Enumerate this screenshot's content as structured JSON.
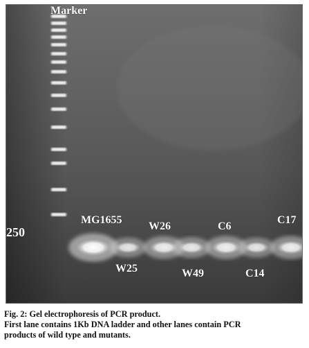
{
  "gel": {
    "marker_label": "Marker",
    "size_label": "250",
    "lanes": [
      {
        "label": "MG1655",
        "label_position": "above",
        "intensity": 1.0
      },
      {
        "label": "W25",
        "label_position": "below",
        "intensity": 0.55
      },
      {
        "label": "W26",
        "label_position": "above",
        "intensity": 0.7
      },
      {
        "label": "W49",
        "label_position": "below",
        "intensity": 0.6
      },
      {
        "label": "C6",
        "label_position": "above",
        "intensity": 0.72
      },
      {
        "label": "C14",
        "label_position": "below",
        "intensity": 0.55
      },
      {
        "label": "C17",
        "label_position": "above",
        "intensity": 0.72
      }
    ]
  },
  "caption": {
    "title": "Fig. 2: Gel electrophoresis of PCR product.",
    "line1": "First lane contains 1Kb DNA ladder and other lanes contain PCR",
    "line2": "products of wild type and mutants."
  },
  "colors": {
    "gel_top": "#6a6a6a",
    "gel_bottom": "#3c3c3c",
    "band": "#ffffff"
  }
}
